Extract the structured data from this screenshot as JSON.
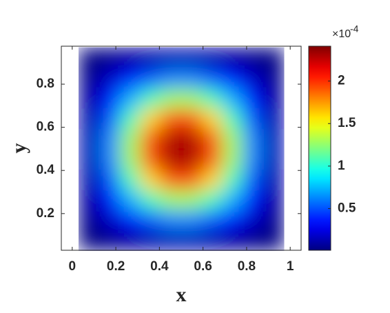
{
  "chart_data": {
    "type": "heatmap",
    "colormap": "jet",
    "xlabel": "x",
    "ylabel": "y",
    "x": [
      0.077,
      0.171,
      0.265,
      0.359,
      0.453,
      0.547,
      0.641,
      0.735,
      0.829,
      0.923
    ],
    "y": [
      0.077,
      0.171,
      0.265,
      0.359,
      0.453,
      0.547,
      0.641,
      0.735,
      0.829,
      0.923
    ],
    "z": [
      [
        0.01,
        0.04,
        0.08,
        0.11,
        0.13,
        0.13,
        0.11,
        0.08,
        0.04,
        0.01
      ],
      [
        0.04,
        0.17,
        0.34,
        0.51,
        0.62,
        0.62,
        0.51,
        0.34,
        0.17,
        0.04
      ],
      [
        0.08,
        0.34,
        0.72,
        1.07,
        1.28,
        1.28,
        1.07,
        0.72,
        0.34,
        0.08
      ],
      [
        0.11,
        0.51,
        1.07,
        1.6,
        1.92,
        1.92,
        1.6,
        1.07,
        0.51,
        0.11
      ],
      [
        0.13,
        0.62,
        1.28,
        1.92,
        2.3,
        2.3,
        1.92,
        1.28,
        0.62,
        0.13
      ],
      [
        0.13,
        0.62,
        1.28,
        1.92,
        2.3,
        2.3,
        1.92,
        1.28,
        0.62,
        0.13
      ],
      [
        0.11,
        0.51,
        1.07,
        1.6,
        1.92,
        1.92,
        1.6,
        1.07,
        0.51,
        0.11
      ],
      [
        0.08,
        0.34,
        0.72,
        1.07,
        1.28,
        1.28,
        1.07,
        0.72,
        0.34,
        0.08
      ],
      [
        0.04,
        0.17,
        0.34,
        0.51,
        0.62,
        0.62,
        0.51,
        0.34,
        0.17,
        0.04
      ],
      [
        0.01,
        0.04,
        0.08,
        0.11,
        0.13,
        0.13,
        0.11,
        0.08,
        0.04,
        0.01
      ]
    ],
    "xlim": [
      -0.05,
      1.05
    ],
    "ylim": [
      0.03,
      0.976
    ],
    "xticks": [
      0,
      0.2,
      0.4,
      0.6,
      0.8,
      1
    ],
    "yticks": [
      0.2,
      0.4,
      0.6,
      0.8
    ],
    "clim": [
      0.01,
      2.41
    ],
    "cticks": [
      0.5,
      1,
      1.5,
      2
    ],
    "colorbar_multiplier": "×10",
    "colorbar_exponent": "-4"
  }
}
